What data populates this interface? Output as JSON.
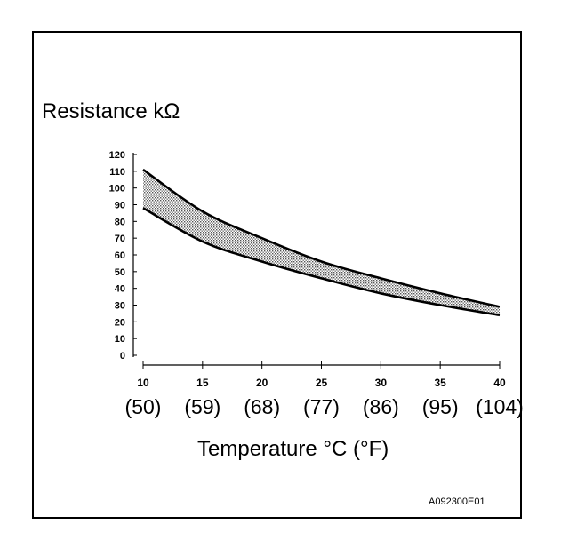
{
  "chart_data": {
    "type": "area",
    "title": "",
    "ylabel": "Resistance kΩ",
    "xlabel": "Temperature °C (°F)",
    "x_ticks": [
      10,
      15,
      20,
      25,
      30,
      35,
      40
    ],
    "x_ticks_f": [
      "(50)",
      "(59)",
      "(68)",
      "(77)",
      "(86)",
      "(95)",
      "(104)"
    ],
    "y_ticks": [
      0,
      10,
      20,
      30,
      40,
      50,
      60,
      70,
      80,
      90,
      100,
      110,
      120
    ],
    "xlim": [
      10,
      40
    ],
    "ylim": [
      0,
      120
    ],
    "grid": false,
    "series": [
      {
        "x": [
          10,
          15,
          20,
          25,
          30,
          35,
          40
        ],
        "values": [
          111,
          86,
          70,
          56,
          46,
          37,
          29
        ]
      },
      {
        "x": [
          10,
          15,
          20,
          25,
          30,
          35,
          40
        ],
        "values": [
          88,
          68,
          56,
          46,
          37,
          30,
          24
        ]
      }
    ]
  },
  "figure_code": "A092300E01"
}
